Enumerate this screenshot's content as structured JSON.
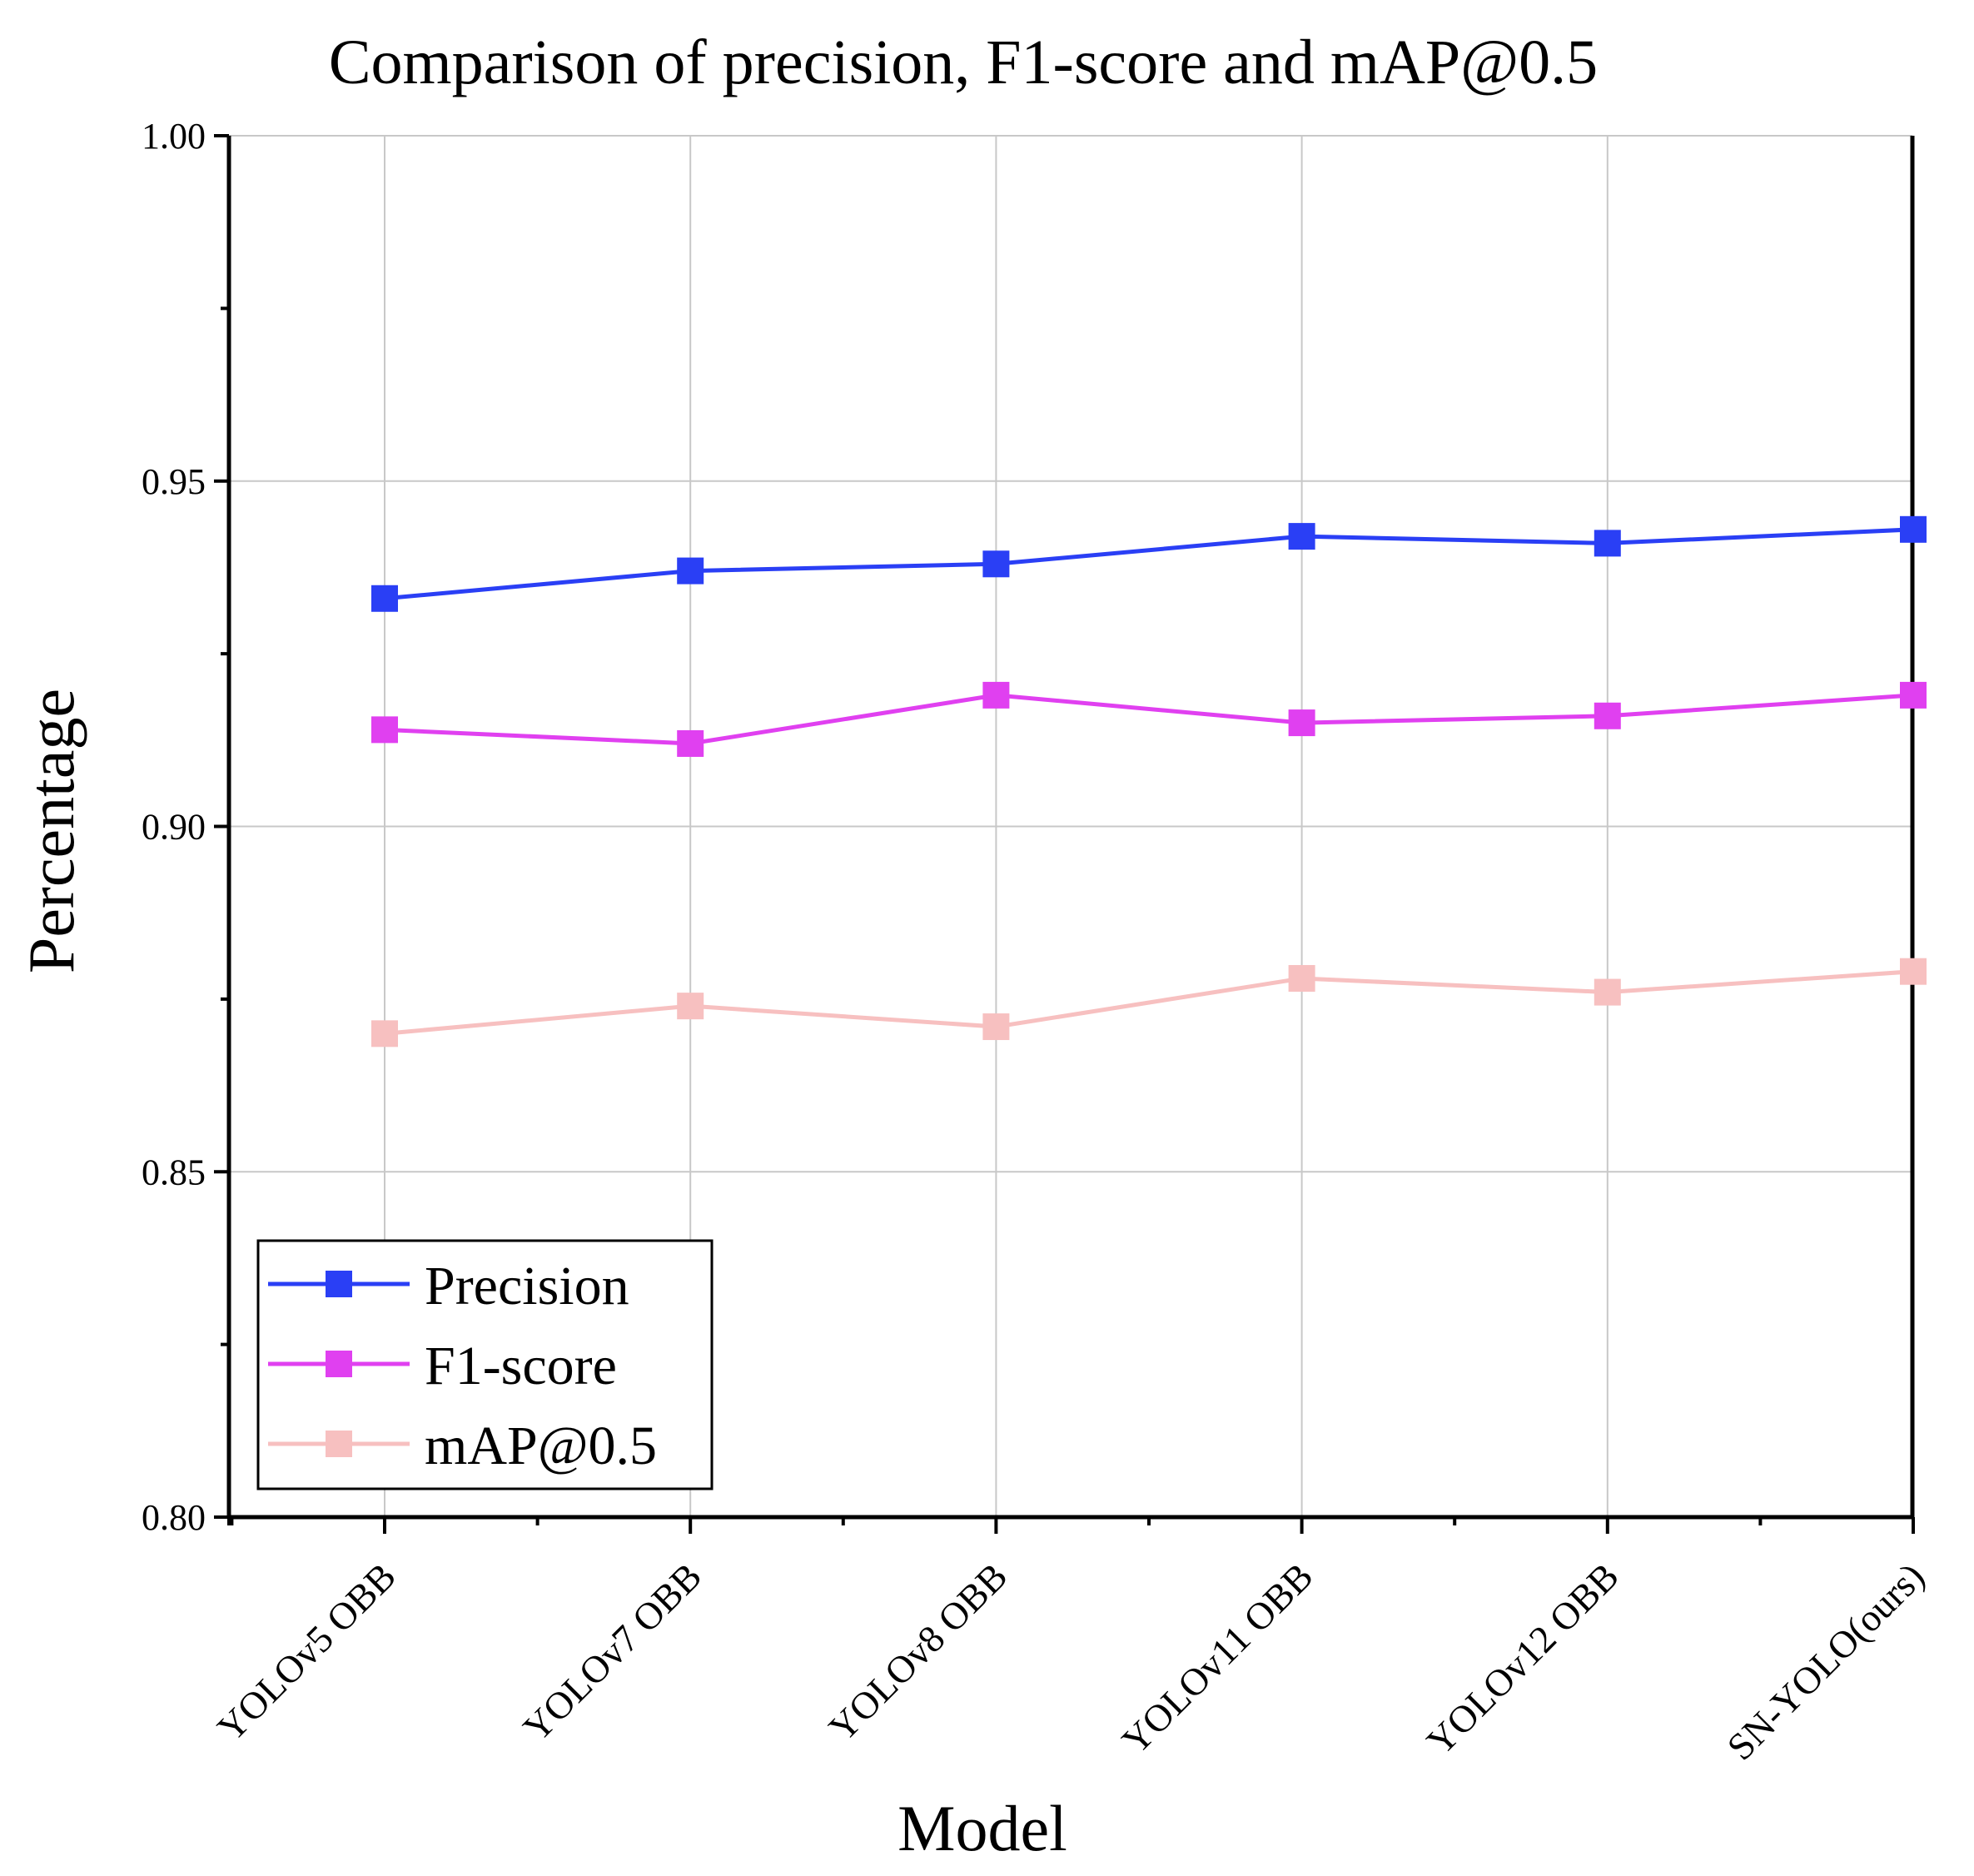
{
  "chart_data": {
    "type": "line",
    "title": "Comparison of precision, F1-score and mAP@0.5",
    "xlabel": "Model",
    "ylabel": "Percentage",
    "categories": [
      "YOLOv5 OBB",
      "YOLOv7 OBB",
      "YOLOv8 OBB",
      "YOLOv11 OBB",
      "YOLOv12 OBB",
      "SN-YOLO(ours)"
    ],
    "ylim": [
      0.8,
      1.0
    ],
    "yticks": [
      "0.80",
      "0.85",
      "0.90",
      "0.95",
      "1.00"
    ],
    "grid": true,
    "legend_position": "bottom-left",
    "series": [
      {
        "name": "Precision",
        "color": "#2a3ff5",
        "marker": "square",
        "values": [
          0.933,
          0.937,
          0.938,
          0.942,
          0.941,
          0.943
        ]
      },
      {
        "name": "F1-score",
        "color": "#e040f0",
        "marker": "square",
        "values": [
          0.914,
          0.912,
          0.919,
          0.915,
          0.916,
          0.919
        ]
      },
      {
        "name": "mAP@0.5",
        "color": "#f7c0c0",
        "marker": "square",
        "values": [
          0.87,
          0.874,
          0.871,
          0.878,
          0.876,
          0.879
        ]
      }
    ]
  }
}
